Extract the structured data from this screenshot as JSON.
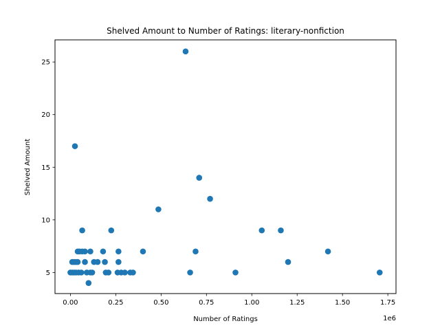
{
  "chart_data": {
    "type": "scatter",
    "title": "Shelved Amount to Number of Ratings: literary-nonfiction",
    "xlabel": "Number of Ratings",
    "ylabel": "Shelved Amount",
    "x_offset_label": "1e6",
    "x_scale": 1000000,
    "xlim": [
      -0.085,
      1.795
    ],
    "ylim": [
      3.0,
      27.1
    ],
    "xticks": [
      0.0,
      0.25,
      0.5,
      0.75,
      1.0,
      1.25,
      1.5,
      1.75
    ],
    "xtick_labels": [
      "0.00",
      "0.25",
      "0.50",
      "0.75",
      "1.00",
      "1.25",
      "1.50",
      "1.75"
    ],
    "yticks": [
      5,
      10,
      15,
      20,
      25
    ],
    "ytick_labels": [
      "5",
      "10",
      "15",
      "20",
      "25"
    ],
    "marker_color": "#1f77b4",
    "grid": false,
    "points": [
      {
        "x": 0.0,
        "y": 5
      },
      {
        "x": 0.01,
        "y": 5
      },
      {
        "x": 0.02,
        "y": 5
      },
      {
        "x": 0.03,
        "y": 5
      },
      {
        "x": 0.045,
        "y": 5
      },
      {
        "x": 0.06,
        "y": 5
      },
      {
        "x": 0.09,
        "y": 5
      },
      {
        "x": 0.11,
        "y": 5
      },
      {
        "x": 0.12,
        "y": 5
      },
      {
        "x": 0.195,
        "y": 5
      },
      {
        "x": 0.21,
        "y": 5
      },
      {
        "x": 0.26,
        "y": 5
      },
      {
        "x": 0.28,
        "y": 5
      },
      {
        "x": 0.3,
        "y": 5
      },
      {
        "x": 0.33,
        "y": 5
      },
      {
        "x": 0.345,
        "y": 5
      },
      {
        "x": 0.66,
        "y": 5
      },
      {
        "x": 0.91,
        "y": 5
      },
      {
        "x": 1.705,
        "y": 5
      },
      {
        "x": 0.1,
        "y": 4
      },
      {
        "x": 0.01,
        "y": 6
      },
      {
        "x": 0.02,
        "y": 6
      },
      {
        "x": 0.03,
        "y": 6
      },
      {
        "x": 0.04,
        "y": 6
      },
      {
        "x": 0.08,
        "y": 6
      },
      {
        "x": 0.13,
        "y": 6
      },
      {
        "x": 0.15,
        "y": 6
      },
      {
        "x": 0.19,
        "y": 6
      },
      {
        "x": 0.265,
        "y": 6
      },
      {
        "x": 1.2,
        "y": 6
      },
      {
        "x": 0.04,
        "y": 7
      },
      {
        "x": 0.05,
        "y": 7
      },
      {
        "x": 0.065,
        "y": 7
      },
      {
        "x": 0.08,
        "y": 7
      },
      {
        "x": 0.11,
        "y": 7
      },
      {
        "x": 0.18,
        "y": 7
      },
      {
        "x": 0.265,
        "y": 7
      },
      {
        "x": 0.4,
        "y": 7
      },
      {
        "x": 0.69,
        "y": 7
      },
      {
        "x": 1.42,
        "y": 7
      },
      {
        "x": 0.065,
        "y": 9
      },
      {
        "x": 0.225,
        "y": 9
      },
      {
        "x": 1.055,
        "y": 9
      },
      {
        "x": 1.16,
        "y": 9
      },
      {
        "x": 0.485,
        "y": 11
      },
      {
        "x": 0.77,
        "y": 12
      },
      {
        "x": 0.71,
        "y": 14
      },
      {
        "x": 0.025,
        "y": 17
      },
      {
        "x": 0.635,
        "y": 26
      }
    ]
  }
}
